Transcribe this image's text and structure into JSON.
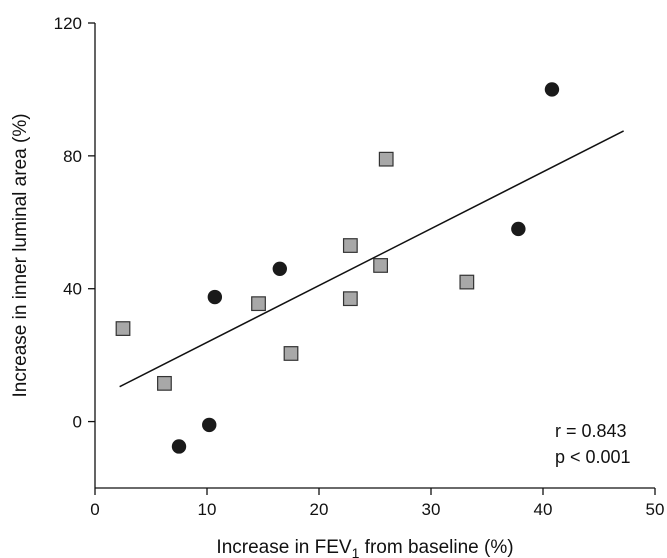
{
  "chart_data": {
    "type": "scatter",
    "title": "",
    "xlabel": "Increase in FEV",
    "xlabel_sub": "1",
    "xlabel_suffix": " from baseline (%)",
    "ylabel": "Increase in inner luminal area (%)",
    "xlim": [
      0,
      50
    ],
    "ylim": [
      -20,
      120
    ],
    "xticks": [
      0,
      10,
      20,
      30,
      40,
      50
    ],
    "yticks": [
      0,
      40,
      80,
      120
    ],
    "series": [
      {
        "marker": "circle",
        "color": "#1a1a1a",
        "points": [
          [
            7.5,
            -7.5
          ],
          [
            10.2,
            -1
          ],
          [
            10.7,
            37.5
          ],
          [
            16.5,
            46
          ],
          [
            37.8,
            58
          ],
          [
            40.8,
            100
          ]
        ]
      },
      {
        "marker": "square",
        "color": "#a8a8a8",
        "points": [
          [
            2.5,
            28
          ],
          [
            6.2,
            11.5
          ],
          [
            14.6,
            35.5
          ],
          [
            17.5,
            20.5
          ],
          [
            22.8,
            53
          ],
          [
            22.8,
            37
          ],
          [
            25.5,
            47
          ],
          [
            26,
            79
          ],
          [
            33.2,
            42
          ]
        ]
      }
    ],
    "regression_line": [
      [
        2.2,
        10.5
      ],
      [
        47.2,
        87.5
      ]
    ],
    "annotations": [
      "r = 0.843",
      "p < 0.001"
    ]
  }
}
